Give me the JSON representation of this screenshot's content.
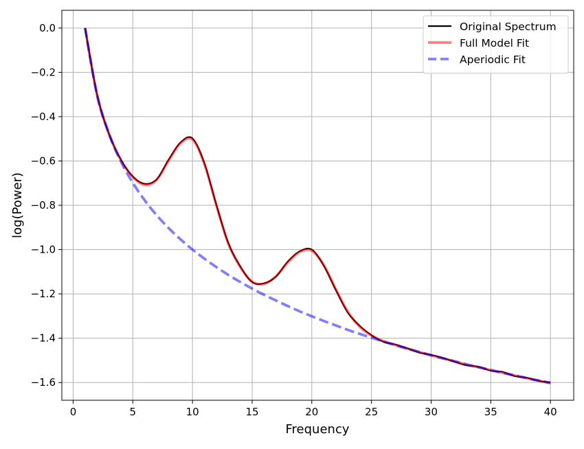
{
  "chart_data": {
    "type": "line",
    "title": "",
    "xlabel": "Frequency",
    "ylabel": "log(Power)",
    "xlim": [
      -0.95,
      41.95
    ],
    "ylim": [
      -1.68,
      0.08
    ],
    "xticks": [
      0,
      5,
      10,
      15,
      20,
      25,
      30,
      35,
      40
    ],
    "yticks": [
      0.0,
      -0.2,
      -0.4,
      -0.6,
      -0.8,
      -1.0,
      -1.2,
      -1.4,
      -1.6
    ],
    "xtick_labels": [
      "0",
      "5",
      "10",
      "15",
      "20",
      "25",
      "30",
      "35",
      "40"
    ],
    "ytick_labels": [
      "0.0",
      "−0.2",
      "−0.4",
      "−0.6",
      "−0.8",
      "−1.0",
      "−1.2",
      "−1.4",
      "−1.6"
    ],
    "grid": true,
    "legend_position": "top-right",
    "x": [
      1,
      2,
      3,
      4,
      5,
      6,
      7,
      8,
      9,
      10,
      11,
      12,
      13,
      14,
      15,
      16,
      17,
      18,
      19,
      20,
      21,
      22,
      23,
      24,
      25,
      26,
      27,
      28,
      29,
      30,
      31,
      32,
      33,
      34,
      35,
      36,
      37,
      38,
      39,
      40
    ],
    "series": [
      {
        "name": "Original Spectrum",
        "color": "#000000",
        "style": "solid",
        "values": [
          0,
          -0.3,
          -0.478,
          -0.594,
          -0.67,
          -0.703,
          -0.683,
          -0.594,
          -0.516,
          -0.498,
          -0.61,
          -0.797,
          -0.97,
          -1.075,
          -1.147,
          -1.152,
          -1.122,
          -1.053,
          -1.007,
          -1.0,
          -1.072,
          -1.181,
          -1.283,
          -1.343,
          -1.386,
          -1.416,
          -1.428,
          -1.445,
          -1.465,
          -1.475,
          -1.489,
          -1.507,
          -1.523,
          -1.529,
          -1.547,
          -1.552,
          -1.571,
          -1.578,
          -1.593,
          -1.599
        ]
      },
      {
        "name": "Full Model Fit",
        "color": "#ff0000",
        "style": "solid",
        "alpha": 0.5,
        "values": [
          0,
          -0.301,
          -0.477,
          -0.596,
          -0.672,
          -0.708,
          -0.685,
          -0.598,
          -0.52,
          -0.503,
          -0.614,
          -0.8,
          -0.972,
          -1.078,
          -1.144,
          -1.155,
          -1.12,
          -1.057,
          -1.01,
          -1.005,
          -1.07,
          -1.178,
          -1.279,
          -1.347,
          -1.388,
          -1.413,
          -1.431,
          -1.447,
          -1.462,
          -1.477,
          -1.491,
          -1.505,
          -1.519,
          -1.531,
          -1.544,
          -1.556,
          -1.568,
          -1.58,
          -1.591,
          -1.602
        ]
      },
      {
        "name": "Aperiodic Fit",
        "color": "#0000ff",
        "style": "dashed",
        "alpha": 0.5,
        "values": [
          0,
          -0.301,
          -0.477,
          -0.602,
          -0.699,
          -0.778,
          -0.845,
          -0.903,
          -0.954,
          -1.0,
          -1.041,
          -1.079,
          -1.114,
          -1.146,
          -1.176,
          -1.204,
          -1.23,
          -1.255,
          -1.279,
          -1.301,
          -1.322,
          -1.342,
          -1.362,
          -1.38,
          -1.398,
          -1.415,
          -1.431,
          -1.447,
          -1.462,
          -1.477,
          -1.491,
          -1.505,
          -1.519,
          -1.531,
          -1.544,
          -1.556,
          -1.568,
          -1.58,
          -1.591,
          -1.602
        ]
      }
    ]
  }
}
